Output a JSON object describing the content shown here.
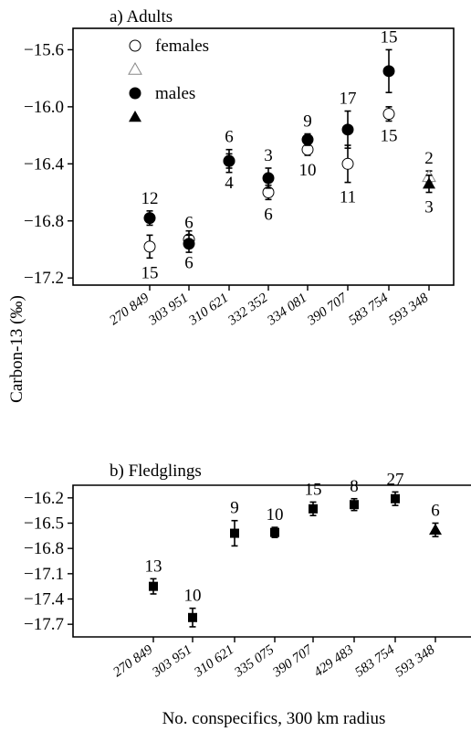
{
  "figure": {
    "ylabel": "Carbon-13 (‰)",
    "xlabel": "No. conspecifics, 300 km radius"
  },
  "legend": [
    {
      "label": "females",
      "marker": "circle-open"
    },
    {
      "label": "",
      "marker": "triangle-open"
    },
    {
      "label": "males",
      "marker": "circle-filled"
    },
    {
      "label": "",
      "marker": "triangle-filled"
    }
  ],
  "chart_data": [
    {
      "type": "scatter",
      "title": "a) Adults",
      "xlabel": "No. conspecifics, 300 km radius",
      "ylabel": "Carbon-13 (‰)",
      "categories": [
        "270 849",
        "303 951",
        "310 621",
        "332 352",
        "334 081",
        "390 707",
        "583 754",
        "593 348"
      ],
      "ylim": [
        -17.25,
        -15.45
      ],
      "yticks": [
        -15.6,
        -16.0,
        -16.4,
        -16.8,
        -17.2
      ],
      "ytick_labels": [
        "−15.6",
        "−16.0",
        "−16.4",
        "−16.8",
        "−17.2"
      ],
      "grid": false,
      "legend_position": "top-left",
      "series": [
        {
          "name": "females",
          "marker": "circle-open",
          "points": [
            {
              "cat": 0,
              "y": -16.98,
              "err": 0.08,
              "n": "15",
              "n_pos": "below"
            },
            {
              "cat": 1,
              "y": -16.93,
              "err": 0.06,
              "n": "6",
              "n_pos": "below"
            },
            {
              "cat": 2,
              "y": -16.38,
              "err": 0.05,
              "n": "4",
              "n_pos": "below"
            },
            {
              "cat": 3,
              "y": -16.6,
              "err": 0.05,
              "n": "6",
              "n_pos": "below"
            },
            {
              "cat": 4,
              "y": -16.3,
              "err": 0.04,
              "n": "10",
              "n_pos": "below"
            },
            {
              "cat": 5,
              "y": -16.4,
              "err": 0.13,
              "n": "11",
              "n_pos": "below"
            },
            {
              "cat": 6,
              "y": -16.05,
              "err": 0.05,
              "n": "15",
              "n_pos": "below"
            }
          ]
        },
        {
          "name": "males",
          "marker": "circle-filled",
          "points": [
            {
              "cat": 0,
              "y": -16.78,
              "err": 0.05,
              "n": "12",
              "n_pos": "above"
            },
            {
              "cat": 1,
              "y": -16.96,
              "err": 0.06,
              "n": "6",
              "n_pos": "above"
            },
            {
              "cat": 2,
              "y": -16.38,
              "err": 0.08,
              "n": "6",
              "n_pos": "above"
            },
            {
              "cat": 3,
              "y": -16.5,
              "err": 0.07,
              "n": "3",
              "n_pos": "above"
            },
            {
              "cat": 4,
              "y": -16.23,
              "err": 0.04,
              "n": "9",
              "n_pos": "above"
            },
            {
              "cat": 5,
              "y": -16.16,
              "err": 0.13,
              "n": "17",
              "n_pos": "above"
            },
            {
              "cat": 6,
              "y": -15.75,
              "err": 0.15,
              "n": "15",
              "n_pos": "above"
            }
          ]
        },
        {
          "name": "",
          "marker": "triangle-open",
          "points": [
            {
              "cat": 7,
              "y": -16.49,
              "err": 0.04,
              "n": "2",
              "n_pos": "above"
            }
          ]
        },
        {
          "name": "",
          "marker": "triangle-filled",
          "points": [
            {
              "cat": 7,
              "y": -16.54,
              "err": 0.06,
              "n": "3",
              "n_pos": "below"
            }
          ]
        }
      ]
    },
    {
      "type": "scatter",
      "title": "b) Fledglings",
      "xlabel": "No. conspecifics, 300 km radius",
      "ylabel": "Carbon-13 (‰)",
      "categories": [
        "270 849",
        "303 951",
        "310 621",
        "335 075",
        "390 707",
        "429 483",
        "583 754",
        "593 348"
      ],
      "ylim": [
        -17.85,
        -16.05
      ],
      "yticks": [
        -16.2,
        -16.5,
        -16.8,
        -17.1,
        -17.4,
        -17.7
      ],
      "ytick_labels": [
        "−16.2",
        "−16.5",
        "−16.8",
        "−17.1",
        "−17.4",
        "−17.7"
      ],
      "grid": false,
      "series": [
        {
          "name": "",
          "marker": "square-filled",
          "points": [
            {
              "cat": 0,
              "y": -17.25,
              "err": 0.09,
              "n": "13",
              "n_pos": "above"
            },
            {
              "cat": 1,
              "y": -17.62,
              "err": 0.11,
              "n": "10",
              "n_pos": "above"
            },
            {
              "cat": 2,
              "y": -16.62,
              "err": 0.15,
              "n": "9",
              "n_pos": "above"
            },
            {
              "cat": 3,
              "y": -16.61,
              "err": 0.06,
              "n": "10",
              "n_pos": "above"
            },
            {
              "cat": 4,
              "y": -16.33,
              "err": 0.08,
              "n": "15",
              "n_pos": "above"
            },
            {
              "cat": 5,
              "y": -16.28,
              "err": 0.07,
              "n": "8",
              "n_pos": "above"
            },
            {
              "cat": 6,
              "y": -16.21,
              "err": 0.08,
              "n": "27",
              "n_pos": "above"
            }
          ]
        },
        {
          "name": "",
          "marker": "triangle-filled",
          "points": [
            {
              "cat": 7,
              "y": -16.58,
              "err": 0.08,
              "n": "6",
              "n_pos": "above"
            }
          ]
        }
      ]
    }
  ]
}
